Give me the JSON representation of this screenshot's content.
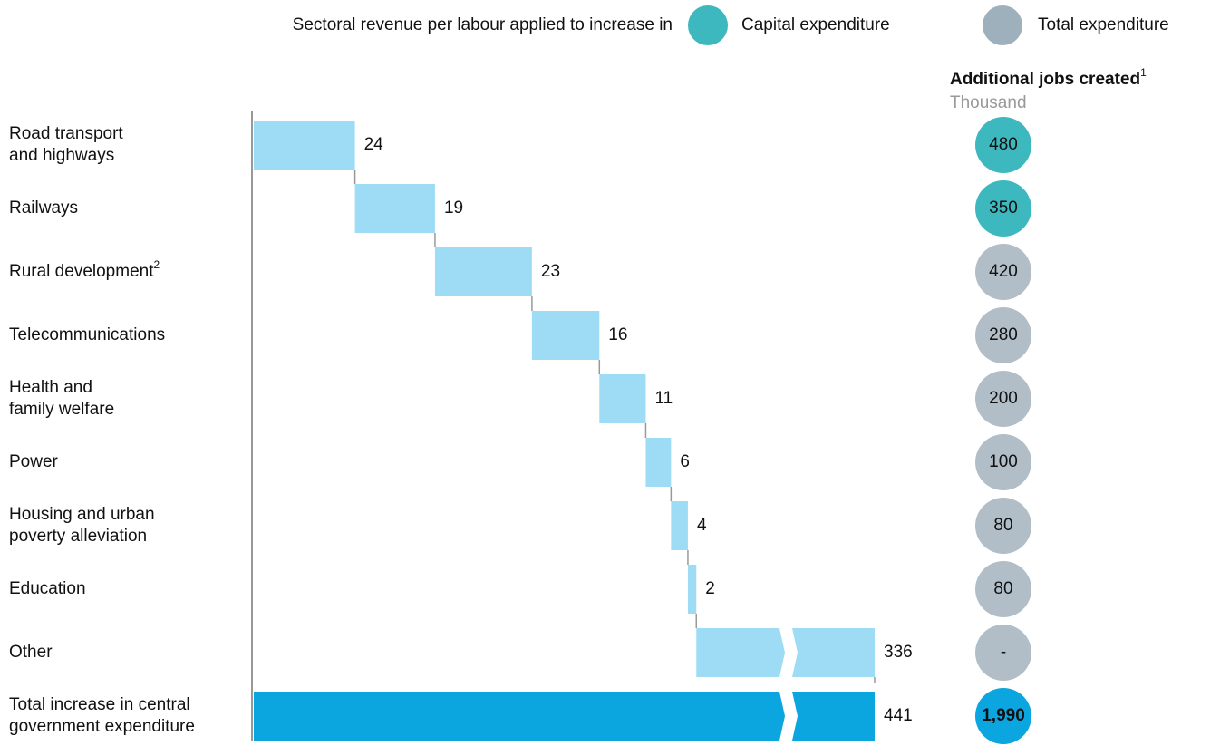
{
  "chart_data": {
    "type": "waterfall",
    "legend": {
      "title": "Sectoral revenue per labour applied to increase in",
      "items": [
        {
          "name": "Capital expenditure",
          "color": "#3db8be"
        },
        {
          "name": "Total expenditure",
          "color": "#9fb0bd"
        }
      ]
    },
    "categories": [
      {
        "lines": [
          "Road transport",
          "and highways"
        ]
      },
      {
        "lines": [
          "Railways"
        ]
      },
      {
        "lines": [
          "Rural development"
        ],
        "note": "2"
      },
      {
        "lines": [
          "Telecommunications"
        ]
      },
      {
        "lines": [
          "Health and",
          "family welfare"
        ]
      },
      {
        "lines": [
          "Power"
        ]
      },
      {
        "lines": [
          "Housing and urban",
          "poverty alleviation"
        ]
      },
      {
        "lines": [
          "Education"
        ]
      },
      {
        "lines": [
          "Other"
        ]
      },
      {
        "lines": [
          "Total increase in central",
          "government expenditure"
        ]
      }
    ],
    "values": [
      24,
      19,
      23,
      16,
      11,
      6,
      4,
      2,
      336,
      441
    ],
    "bar_color": "#9edcf5",
    "total_color": "#0ba6df",
    "axis_break": true,
    "jobs": {
      "title": "Additional jobs created",
      "note": "1",
      "unit": "Thousand",
      "values": [
        480,
        350,
        420,
        280,
        200,
        100,
        80,
        80,
        null,
        1990
      ],
      "value_labels": [
        "480",
        "350",
        "420",
        "280",
        "200",
        "100",
        "80",
        "80",
        "-",
        "1,990"
      ],
      "colors": [
        "#3db8be",
        "#3db8be",
        "#b1bec7",
        "#b1bec7",
        "#b1bec7",
        "#b1bec7",
        "#b1bec7",
        "#b1bec7",
        "#b1bec7",
        "#0ba6df"
      ]
    }
  }
}
